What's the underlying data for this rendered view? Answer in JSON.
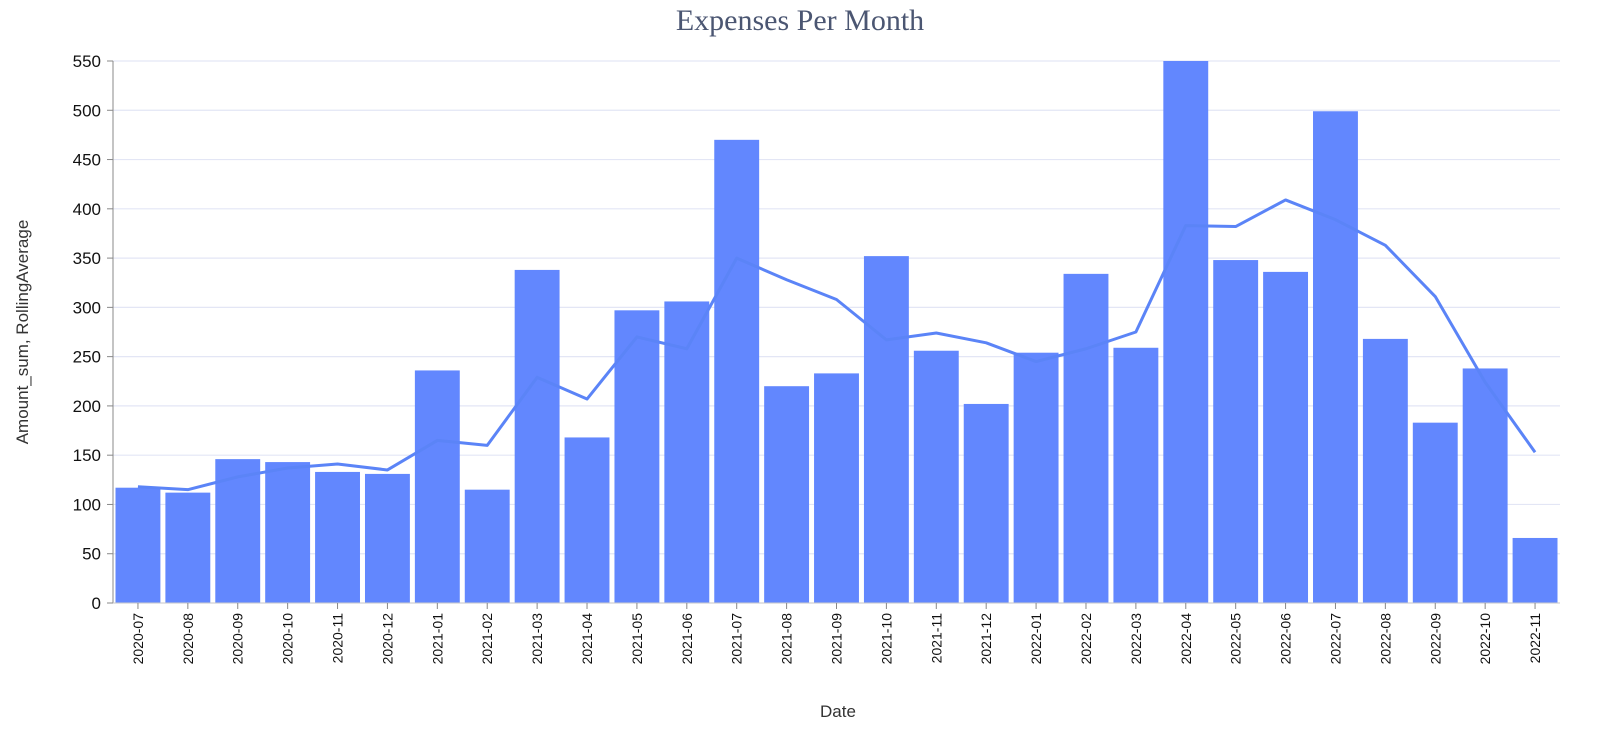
{
  "chart_data": {
    "type": "bar",
    "title": "Expenses Per Month",
    "xlabel": "Date",
    "ylabel": "Amount_sum, RollingAverage",
    "ylim": [
      0,
      550
    ],
    "yticks": [
      0,
      50,
      100,
      150,
      200,
      250,
      300,
      350,
      400,
      450,
      500,
      550
    ],
    "grid": true,
    "colors": {
      "bar": "#6287fe",
      "line": "#5b84f7",
      "grid": "#e3e6f5"
    },
    "categories": [
      "2020-07",
      "2020-08",
      "2020-09",
      "2020-10",
      "2020-11",
      "2020-12",
      "2021-01",
      "2021-02",
      "2021-03",
      "2021-04",
      "2021-05",
      "2021-06",
      "2021-07",
      "2021-08",
      "2021-09",
      "2021-10",
      "2021-11",
      "2021-12",
      "2022-01",
      "2022-02",
      "2022-03",
      "2022-04",
      "2022-05",
      "2022-06",
      "2022-07",
      "2022-08",
      "2022-09",
      "2022-10",
      "2022-11"
    ],
    "series": [
      {
        "type": "bar",
        "values": [
          117,
          112,
          146,
          143,
          133,
          131,
          236,
          115,
          338,
          168,
          297,
          306,
          470,
          220,
          233,
          352,
          256,
          202,
          254,
          334,
          259,
          550,
          348,
          336,
          499,
          268,
          183,
          238,
          66
        ]
      },
      {
        "type": "line",
        "values": [
          118,
          115,
          128,
          137,
          141,
          135,
          165,
          160,
          229,
          207,
          270,
          258,
          350,
          328,
          308,
          267,
          274,
          264,
          245,
          258,
          275,
          383,
          382,
          409,
          389,
          363,
          311,
          224,
          153
        ]
      }
    ]
  }
}
